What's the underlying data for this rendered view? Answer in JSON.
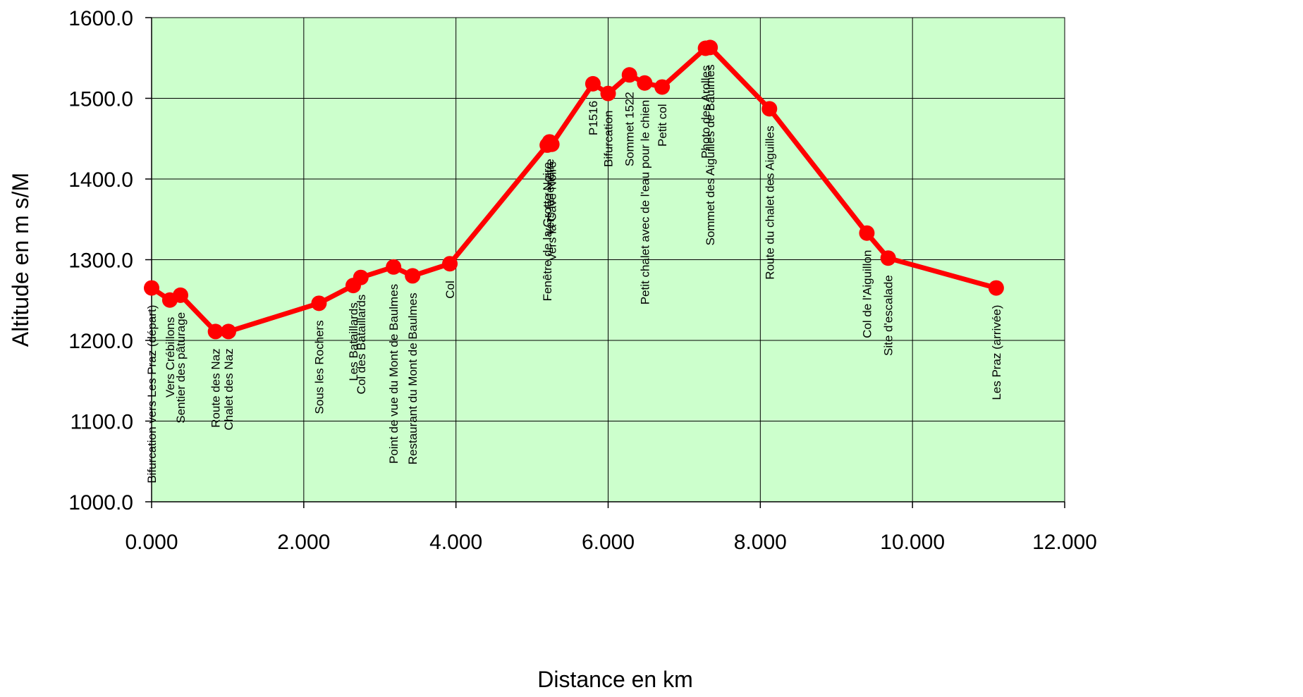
{
  "chart_data": {
    "type": "line",
    "title": "",
    "xlabel": "Distance en km",
    "ylabel": "Altitude en m s/M",
    "xlim": [
      0,
      12
    ],
    "ylim": [
      1000,
      1600
    ],
    "x_ticks": [
      "0.000",
      "2.000",
      "4.000",
      "6.000",
      "8.000",
      "10.000",
      "12.000"
    ],
    "y_ticks": [
      "1000.0",
      "1100.0",
      "1200.0",
      "1300.0",
      "1400.0",
      "1500.0",
      "1600.0"
    ],
    "grid": true,
    "legend": "none",
    "plot_background": "#ccffcc",
    "line_color": "#ff0000",
    "series": [
      {
        "points": [
          {
            "x": 0.0,
            "y": 1265,
            "label": "Bifurcation vers Les Praz (départ)"
          },
          {
            "x": 0.24,
            "y": 1250,
            "label": "Vers Crébillons"
          },
          {
            "x": 0.38,
            "y": 1256,
            "label": "Sentier des pâturage"
          },
          {
            "x": 0.84,
            "y": 1211,
            "label": "Route des Naz"
          },
          {
            "x": 1.01,
            "y": 1211,
            "label": "Chalet des Naz"
          },
          {
            "x": 2.2,
            "y": 1246,
            "label": "Sous les Rochers"
          },
          {
            "x": 2.65,
            "y": 1268,
            "label": "Les Bataillards"
          },
          {
            "x": 2.75,
            "y": 1278,
            "label": "Col des Bataillards"
          },
          {
            "x": 3.18,
            "y": 1291,
            "label": "Point de vue du Mont de Baulmes"
          },
          {
            "x": 3.43,
            "y": 1280,
            "label": "Restaurant du Mont de Baulmes"
          },
          {
            "x": 3.92,
            "y": 1295,
            "label": "Col"
          },
          {
            "x": 5.2,
            "y": 1442,
            "label": "Fenêtre de la Grotte Noire"
          },
          {
            "x": 5.23,
            "y": 1446,
            "label": "Vers la fenêtre"
          },
          {
            "x": 5.26,
            "y": 1443,
            "label": "Vers la Cave Noire"
          },
          {
            "x": 5.8,
            "y": 1518,
            "label": "P1516"
          },
          {
            "x": 6.0,
            "y": 1506,
            "label": "Bifurcation"
          },
          {
            "x": 6.28,
            "y": 1529,
            "label": "Sommet 1522"
          },
          {
            "x": 6.48,
            "y": 1519,
            "label": "Petit chalet avec de l'eau pour le chien"
          },
          {
            "x": 6.71,
            "y": 1514,
            "label": "Petit col"
          },
          {
            "x": 7.28,
            "y": 1562,
            "label": "Photo des Arolles"
          },
          {
            "x": 7.34,
            "y": 1563,
            "label": "Sommet des Aiguilles de Baulmes"
          },
          {
            "x": 8.12,
            "y": 1487,
            "label": "Route du chalet des Aiguilles"
          },
          {
            "x": 9.4,
            "y": 1333,
            "label": "Col de l'Aiguillon"
          },
          {
            "x": 9.68,
            "y": 1302,
            "label": "Site d'escalade"
          },
          {
            "x": 11.1,
            "y": 1265,
            "label": "Les Praz (arrivée)"
          }
        ]
      }
    ]
  }
}
